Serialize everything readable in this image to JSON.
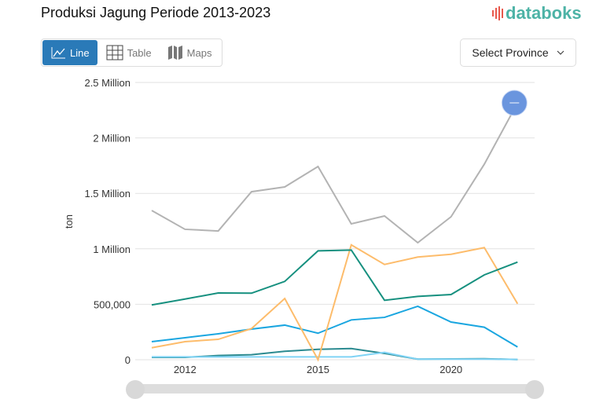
{
  "header": {
    "title": "Produksi Jagung Periode 2013-2023",
    "logo_text": "databoks"
  },
  "view_tabs": [
    {
      "label": "Line",
      "icon": "line-chart-icon",
      "active": true
    },
    {
      "label": "Table",
      "icon": "table-grid-icon"
    },
    {
      "label": "Maps",
      "icon": "map-icon"
    }
  ],
  "province_select": {
    "label": "Select Province"
  },
  "chart_data": {
    "type": "line",
    "title": "",
    "ylabel": "ton",
    "ylim": [
      0,
      2500000
    ],
    "y_ticks": [
      {
        "value": 0,
        "label": "0"
      },
      {
        "value": 500000,
        "label": "500,000"
      },
      {
        "value": 1000000,
        "label": "1 Million"
      },
      {
        "value": 1500000,
        "label": "1.5 Million"
      },
      {
        "value": 2000000,
        "label": "2 Million"
      },
      {
        "value": 2500000,
        "label": "2.5 Million"
      }
    ],
    "x_points": 12,
    "x_ticks": [
      {
        "label": "2012",
        "point_index": 1
      },
      {
        "label": "2015",
        "point_index": 5
      },
      {
        "label": "2020",
        "point_index": 9
      }
    ],
    "grid": true,
    "series": [
      {
        "color": "#b3b3b3",
        "values": [
          1346000,
          1176000,
          1161000,
          1515000,
          1558000,
          1742000,
          1225000,
          1296000,
          1055000,
          1289000,
          1763000,
          2316000
        ]
      },
      {
        "color": "#16907f",
        "values": [
          494000,
          547000,
          602000,
          600000,
          706000,
          982000,
          989000,
          536000,
          571000,
          588000,
          765000,
          880000
        ]
      },
      {
        "color": "#fdbc6b",
        "values": [
          108000,
          163000,
          184000,
          281000,
          552000,
          0,
          1036000,
          859000,
          926000,
          951000,
          1011000,
          505000
        ]
      },
      {
        "color": "#1aa6e0",
        "values": [
          163000,
          198000,
          234000,
          276000,
          312000,
          239000,
          359000,
          382000,
          482000,
          340000,
          293000,
          115000
        ]
      },
      {
        "color": "#7fd3f5",
        "values": [
          26000,
          26000,
          26000,
          26000,
          26000,
          26000,
          26000,
          66000,
          5000,
          5000,
          5000,
          3000
        ]
      },
      {
        "color": "#2b8a90",
        "values": [
          21000,
          21000,
          38000,
          45000,
          76000,
          94000,
          101000,
          57000,
          5000,
          7000,
          9000,
          2000
        ]
      }
    ],
    "highlight": {
      "series_index": 0,
      "point_index": 11,
      "color": "#6a95de"
    }
  }
}
